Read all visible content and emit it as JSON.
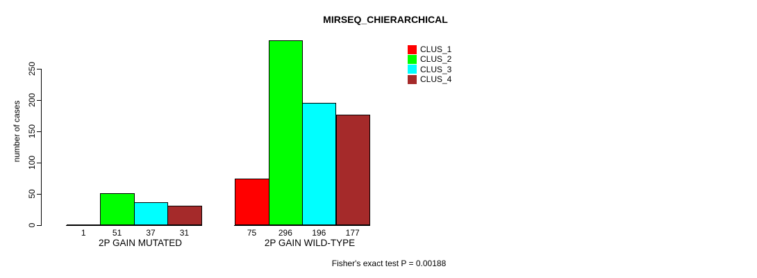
{
  "chart_data": {
    "type": "bar",
    "title": "MIRSEQ_CHIERARCHICAL",
    "ylabel": "number of cases",
    "xlabel": "",
    "footnote": "Fisher's exact test P = 0.00188",
    "categories": [
      "2P GAIN MUTATED",
      "2P GAIN WILD-TYPE"
    ],
    "series": [
      {
        "name": "CLUS_1",
        "color": "#ff0000",
        "values": [
          1,
          75
        ]
      },
      {
        "name": "CLUS_2",
        "color": "#00ff00",
        "values": [
          51,
          296
        ]
      },
      {
        "name": "CLUS_3",
        "color": "#00ffff",
        "values": [
          37,
          196
        ]
      },
      {
        "name": "CLUS_4",
        "color": "#a52a2a",
        "values": [
          31,
          177
        ]
      }
    ],
    "bar_value_labels": [
      [
        "1",
        "51",
        "37",
        "31"
      ],
      [
        "75",
        "296",
        "196",
        "177"
      ]
    ],
    "ylim": [
      0,
      250
    ],
    "yticks": [
      0,
      50,
      100,
      150,
      200,
      250
    ],
    "legend_position": "top-right",
    "grid": false,
    "axis_color": "#000000",
    "background_color": "#ffffff"
  }
}
